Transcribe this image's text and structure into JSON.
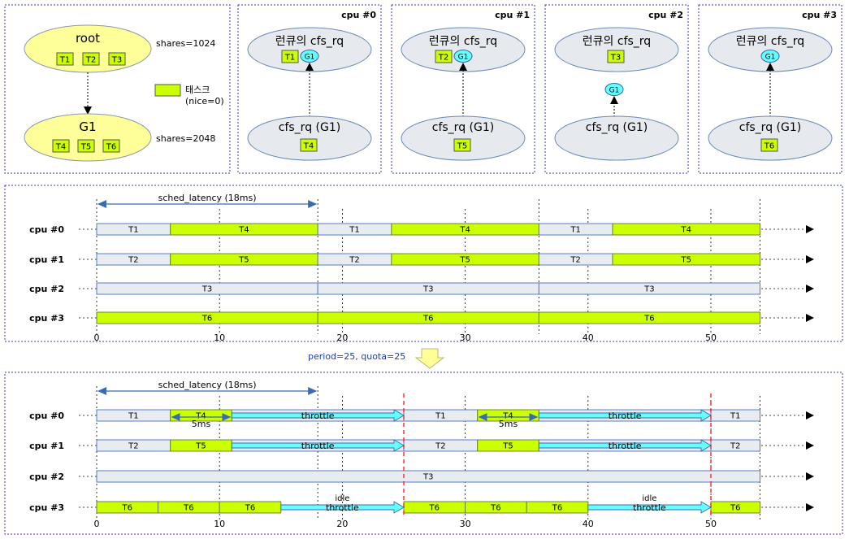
{
  "hierarchy": {
    "root_label": "root",
    "root_tasks": [
      "T1",
      "T2",
      "T3"
    ],
    "root_shares": "shares=1024",
    "g1_label": "G1",
    "g1_tasks": [
      "T4",
      "T5",
      "T6"
    ],
    "g1_shares": "shares=2048",
    "legend_label": "태스크",
    "legend_sub": "(nice=0)"
  },
  "cpus": [
    {
      "title": "cpu #0",
      "rq_label": "런큐의 cfs_rq",
      "rq_task": "T1",
      "rq_group": "G1",
      "grp_label": "cfs_rq (G1)",
      "grp_task": "T4",
      "group_in_rq": true
    },
    {
      "title": "cpu #1",
      "rq_label": "런큐의 cfs_rq",
      "rq_task": "T2",
      "rq_group": "G1",
      "grp_label": "cfs_rq (G1)",
      "grp_task": "T5",
      "group_in_rq": true
    },
    {
      "title": "cpu #2",
      "rq_label": "런큐의 cfs_rq",
      "rq_task": "T3",
      "rq_group": "G1",
      "grp_label": "cfs_rq (G1)",
      "grp_task": "",
      "group_in_rq": false
    },
    {
      "title": "cpu #3",
      "rq_label": "런큐의 cfs_rq",
      "rq_task": "",
      "rq_group": "G1",
      "grp_label": "cfs_rq (G1)",
      "grp_task": "T6",
      "group_in_rq": true
    }
  ],
  "timeline_top": {
    "sched_latency_label": "sched_latency (18ms)",
    "rows": [
      {
        "label": "cpu #0",
        "segments": [
          {
            "s": 0,
            "e": 6,
            "t": "T1",
            "k": "g"
          },
          {
            "s": 6,
            "e": 18,
            "t": "T4",
            "k": "l"
          },
          {
            "s": 18,
            "e": 24,
            "t": "T1",
            "k": "g"
          },
          {
            "s": 24,
            "e": 36,
            "t": "T4",
            "k": "l"
          },
          {
            "s": 36,
            "e": 42,
            "t": "T1",
            "k": "g"
          },
          {
            "s": 42,
            "e": 54,
            "t": "T4",
            "k": "l"
          }
        ]
      },
      {
        "label": "cpu #1",
        "segments": [
          {
            "s": 0,
            "e": 6,
            "t": "T2",
            "k": "g"
          },
          {
            "s": 6,
            "e": 18,
            "t": "T5",
            "k": "l"
          },
          {
            "s": 18,
            "e": 24,
            "t": "T2",
            "k": "g"
          },
          {
            "s": 24,
            "e": 36,
            "t": "T5",
            "k": "l"
          },
          {
            "s": 36,
            "e": 42,
            "t": "T2",
            "k": "g"
          },
          {
            "s": 42,
            "e": 54,
            "t": "T5",
            "k": "l"
          }
        ]
      },
      {
        "label": "cpu #2",
        "segments": [
          {
            "s": 0,
            "e": 18,
            "t": "T3",
            "k": "g"
          },
          {
            "s": 18,
            "e": 36,
            "t": "T3",
            "k": "g"
          },
          {
            "s": 36,
            "e": 54,
            "t": "T3",
            "k": "g"
          }
        ]
      },
      {
        "label": "cpu #3",
        "segments": [
          {
            "s": 0,
            "e": 18,
            "t": "T6",
            "k": "l"
          },
          {
            "s": 18,
            "e": 36,
            "t": "T6",
            "k": "l"
          },
          {
            "s": 36,
            "e": 54,
            "t": "T6",
            "k": "l"
          }
        ]
      }
    ],
    "ticks": [
      "0",
      "10",
      "20",
      "30",
      "40",
      "50"
    ]
  },
  "period_label": "period=25, quota=25",
  "timeline_bottom": {
    "sched_latency_label": "sched_latency (18ms)",
    "rows": [
      {
        "label": "cpu #0",
        "segments": [
          {
            "s": 0,
            "e": 6,
            "t": "T1",
            "k": "g"
          },
          {
            "s": 6,
            "e": 11,
            "t": "T4",
            "k": "l"
          },
          {
            "s": 11,
            "e": 25,
            "t": "T1",
            "k": "g"
          },
          {
            "s": 25,
            "e": 31,
            "t": "T1",
            "k": "g"
          },
          {
            "s": 31,
            "e": 36,
            "t": "T4",
            "k": "l"
          },
          {
            "s": 36,
            "e": 50,
            "t": "T1",
            "k": "g"
          },
          {
            "s": 50,
            "e": 54,
            "t": "T1",
            "k": "g"
          }
        ]
      },
      {
        "label": "cpu #1",
        "segments": [
          {
            "s": 0,
            "e": 6,
            "t": "T2",
            "k": "g"
          },
          {
            "s": 6,
            "e": 11,
            "t": "T5",
            "k": "l"
          },
          {
            "s": 11,
            "e": 25,
            "t": "T2",
            "k": "g"
          },
          {
            "s": 25,
            "e": 31,
            "t": "T2",
            "k": "g"
          },
          {
            "s": 31,
            "e": 36,
            "t": "T5",
            "k": "l"
          },
          {
            "s": 36,
            "e": 50,
            "t": "T2",
            "k": "g"
          },
          {
            "s": 50,
            "e": 54,
            "t": "T2",
            "k": "g"
          }
        ]
      },
      {
        "label": "cpu #2",
        "segments": [
          {
            "s": 0,
            "e": 54,
            "t": "T3",
            "k": "g"
          }
        ]
      },
      {
        "label": "cpu #3",
        "segments": [
          {
            "s": 0,
            "e": 5,
            "t": "T6",
            "k": "l"
          },
          {
            "s": 5,
            "e": 10,
            "t": "T6",
            "k": "l"
          },
          {
            "s": 10,
            "e": 15,
            "t": "T6",
            "k": "l"
          },
          {
            "s": 25,
            "e": 30,
            "t": "T6",
            "k": "l"
          },
          {
            "s": 30,
            "e": 35,
            "t": "T6",
            "k": "l"
          },
          {
            "s": 35,
            "e": 40,
            "t": "T6",
            "k": "l"
          },
          {
            "s": 50,
            "e": 54,
            "t": "T6",
            "k": "l"
          }
        ]
      }
    ],
    "throttles": [
      {
        "row": 0,
        "s": 11,
        "e": 25,
        "label": "throttle"
      },
      {
        "row": 0,
        "s": 36,
        "e": 50,
        "label": "throttle"
      },
      {
        "row": 1,
        "s": 11,
        "e": 25,
        "label": "throttle"
      },
      {
        "row": 1,
        "s": 36,
        "e": 50,
        "label": "throttle"
      },
      {
        "row": 3,
        "s": 15,
        "e": 25,
        "label": "throttle",
        "top": "idle"
      },
      {
        "row": 3,
        "s": 40,
        "e": 50,
        "label": "throttle",
        "top": "idle"
      }
    ],
    "five_ms": [
      {
        "s": 6,
        "e": 11,
        "label": "5ms"
      },
      {
        "s": 31,
        "e": 36,
        "label": "5ms"
      }
    ],
    "period_marks": [
      25,
      50
    ],
    "ticks": [
      "0",
      "10",
      "20",
      "30",
      "40",
      "50"
    ]
  },
  "colors": {
    "lime": "#ccff00",
    "gray": "#e8ecf0",
    "ellipse_yellow": "#ffff99",
    "ellipse_gray": "#e6e9ed",
    "cyan": "#66ffff",
    "arrow_cyan": "#66ffff",
    "border_blue": "#4472c4",
    "period_red": "#ff0000"
  }
}
